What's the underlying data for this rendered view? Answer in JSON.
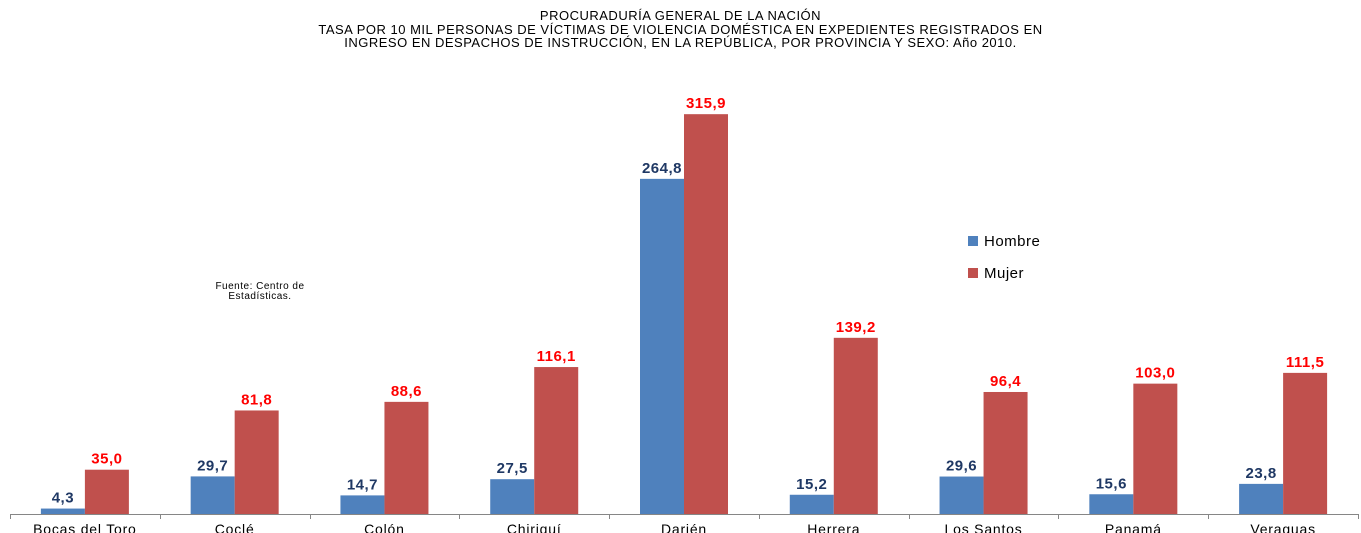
{
  "chart_data": {
    "type": "bar",
    "title": [
      "PROCURADURÍA GENERAL DE LA NACIÓN",
      "TASA POR 10 MIL PERSONAS DE VÍCTIMAS DE VIOLENCIA DOMÉSTICA EN EXPEDIENTES REGISTRADOS EN",
      "INGRESO EN DESPACHOS DE INSTRUCCIÓN, EN LA REPÚBLICA, POR PROVINCIA Y SEXO: Año 2010."
    ],
    "note": [
      "Fuente: Centro de",
      "Estadísticas."
    ],
    "categories": [
      "Bocas del Toro",
      "Coclé",
      "Colón",
      "Chiriquí",
      "Darién",
      "Herrera",
      "Los Santos",
      "Panamá",
      "Veraguas"
    ],
    "series": [
      {
        "name": "Hombre",
        "color": "#4F81BD",
        "label_color": "#1F3864",
        "values": [
          4.3,
          29.7,
          14.7,
          27.5,
          264.8,
          15.2,
          29.6,
          15.6,
          23.8
        ],
        "labels": [
          "4,3",
          "29,7",
          "14,7",
          "27,5",
          "264,8",
          "15,2",
          "29,6",
          "15,6",
          "23,8"
        ]
      },
      {
        "name": "Mujer",
        "color": "#C0504D",
        "label_color": "#FF0000",
        "values": [
          35.0,
          81.8,
          88.6,
          116.1,
          315.9,
          139.2,
          96.4,
          103.0,
          111.5
        ],
        "labels": [
          "35,0",
          "81,8",
          "88,6",
          "116,1",
          "315,9",
          "139,2",
          "96,4",
          "103,0",
          "111,5"
        ]
      }
    ],
    "ylim": [
      0,
      335
    ],
    "grid": false,
    "legend": "right"
  }
}
